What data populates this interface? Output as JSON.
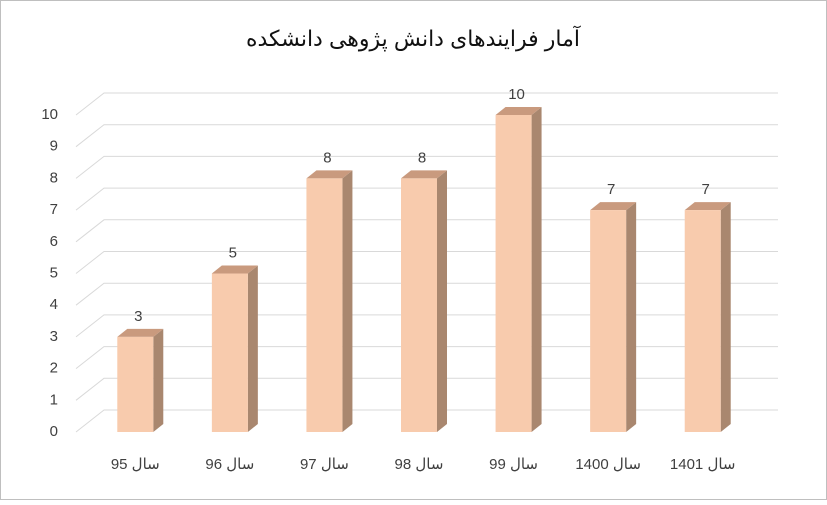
{
  "chart_data": {
    "type": "bar",
    "title": "آمار فرایندهای دانش پژوهی دانشکده",
    "categories": [
      "سال 95",
      "سال 96",
      "سال 97",
      "سال 98",
      "سال 99",
      "سال 1400",
      "سال 1401"
    ],
    "values": [
      3,
      5,
      8,
      8,
      10,
      7,
      7
    ],
    "color": "#f8cbad",
    "ylim": [
      0,
      10
    ],
    "yticks": [
      0,
      1,
      2,
      3,
      4,
      5,
      6,
      7,
      8,
      9,
      10
    ],
    "grid": true
  }
}
